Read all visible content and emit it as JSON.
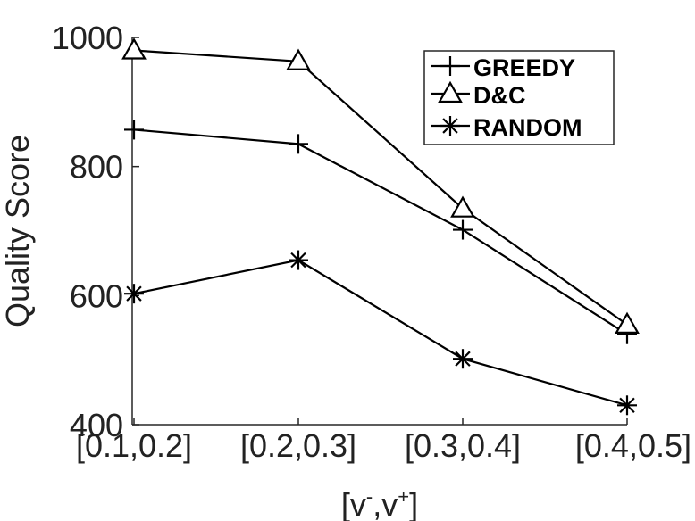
{
  "chart_data": {
    "type": "line",
    "categories": [
      "[0.1,0.2]",
      "[0.2,0.3]",
      "[0.3,0.4]",
      "[0.4,0.5]"
    ],
    "ylabel": "Quality Score",
    "xlabel_parts": {
      "base": "[v",
      "sup1": "-",
      "mid": ",v",
      "sup2": "+",
      "end": "]"
    },
    "ylim": [
      400,
      1000
    ],
    "yticks": [
      400,
      600,
      800,
      1000
    ],
    "ytick_labels": [
      "400",
      "600",
      "800",
      "1000"
    ],
    "grid": false,
    "legend_position": "top-right",
    "series": [
      {
        "name": "GREEDY",
        "marker": "plus",
        "values": [
          857,
          835,
          702,
          540
        ]
      },
      {
        "name": "D&C",
        "marker": "triangle",
        "values": [
          980,
          963,
          735,
          555
        ]
      },
      {
        "name": "RANDOM",
        "marker": "asterisk",
        "values": [
          603,
          655,
          502,
          430
        ]
      }
    ],
    "colors": {
      "line": "#000000",
      "axis": "#262626",
      "text": "#222222"
    }
  }
}
